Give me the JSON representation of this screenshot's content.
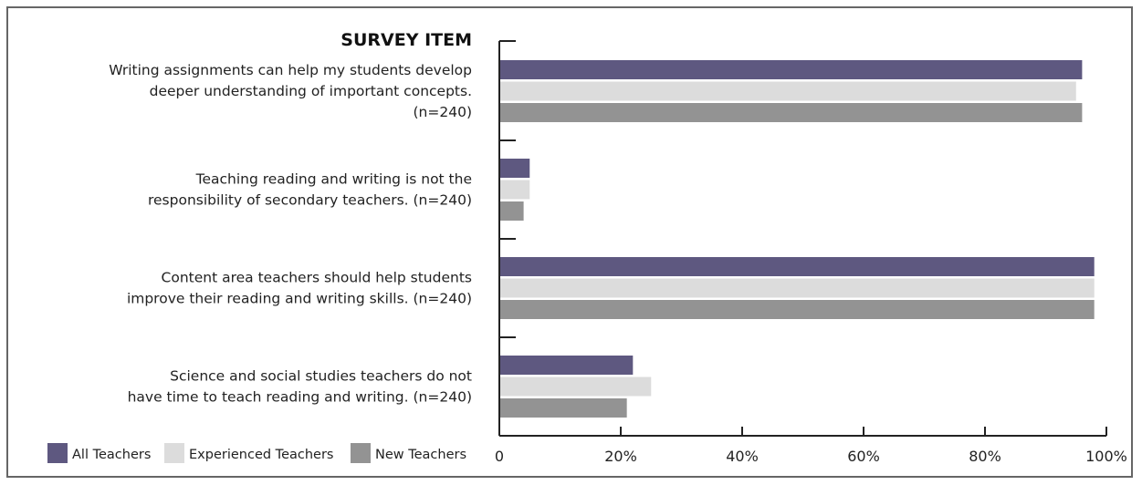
{
  "chart_data": {
    "type": "bar",
    "orientation": "horizontal",
    "title": "SURVEY ITEM",
    "categories": [
      [
        "Writing assignments can help my students develop",
        "deeper understanding of important concepts.",
        "(n=240)"
      ],
      [
        "Teaching reading and writing is not the",
        "responsibility of secondary teachers.  (n=240)"
      ],
      [
        "Content area teachers should help students",
        "improve their reading and writing skills.  (n=240)"
      ],
      [
        "Science and social studies teachers do not",
        "have time to teach reading and writing.  (n=240)"
      ]
    ],
    "series": [
      {
        "name": "All Teachers",
        "color": "#5e5880",
        "values": [
          96,
          5,
          98,
          22
        ]
      },
      {
        "name": "Experienced Teachers",
        "color": "#dcdcdc",
        "values": [
          95,
          5,
          98,
          25
        ]
      },
      {
        "name": "New Teachers",
        "color": "#939393",
        "values": [
          96,
          4,
          98,
          21
        ]
      }
    ],
    "xlim": [
      0,
      100
    ],
    "xticks": [
      "0",
      "20%",
      "40%",
      "60%",
      "80%",
      "100%"
    ],
    "legend_position": "bottom-left",
    "grid": false
  }
}
